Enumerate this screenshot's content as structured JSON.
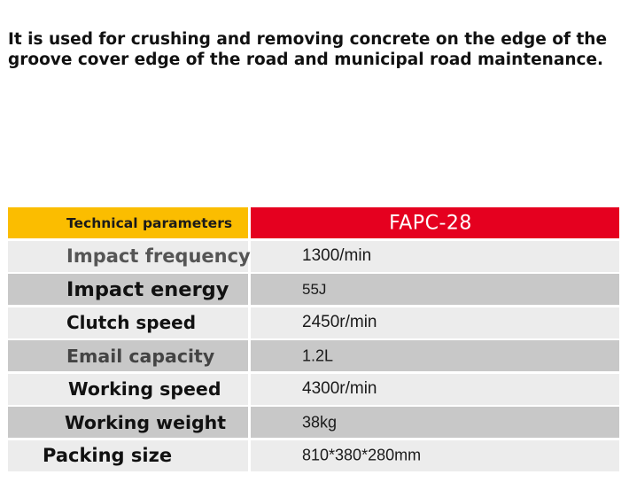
{
  "description": "It is used for crushing and removing concrete on the edge of the groove cover edge of the road and municipal road maintenance.",
  "table": {
    "header": {
      "label": "Technical parameters",
      "model": "FAPC-28"
    },
    "rows": [
      {
        "label": "Impact frequency",
        "value": "1300/min"
      },
      {
        "label": "Impact energy",
        "value": "55J"
      },
      {
        "label": "Clutch speed",
        "value": "2450r/min"
      },
      {
        "label": "Email capacity",
        "value": "1.2L"
      },
      {
        "label": "Working speed",
        "value": "4300r/min"
      },
      {
        "label": "Working weight",
        "value": "38kg"
      },
      {
        "label": "Packing size",
        "value": "810*380*280mm"
      }
    ]
  },
  "colors": {
    "header_label_bg": "#fbbd00",
    "header_model_bg": "#e5001f",
    "row_light_bg": "#ececec",
    "row_dark_bg": "#c8c8c8"
  }
}
